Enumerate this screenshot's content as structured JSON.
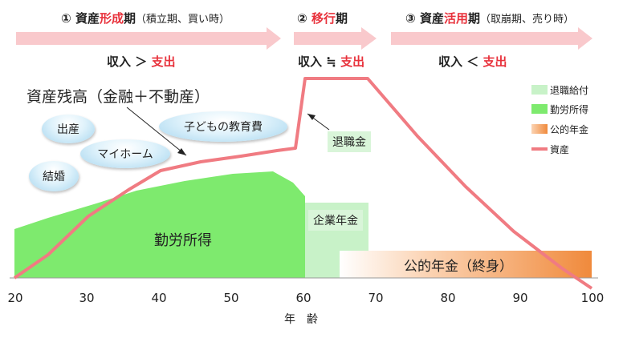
{
  "phases": [
    {
      "number": "①",
      "name_pre": "資産",
      "name_hl": "形成",
      "name_post": "期",
      "subtitle": "（積立期、買い時）",
      "comparison_left": "収入",
      "comparison_sign": "＞",
      "comparison_right": "支出"
    },
    {
      "number": "②",
      "name_pre": "",
      "name_hl": "移行",
      "name_post": "期",
      "subtitle": "",
      "comparison_left": "収入",
      "comparison_sign": "≒",
      "comparison_right": "支出"
    },
    {
      "number": "③",
      "name_pre": "資産",
      "name_hl": "活用",
      "name_post": "期",
      "subtitle": "（取崩期、売り時）",
      "comparison_left": "収入",
      "comparison_sign": "＜",
      "comparison_right": "支出"
    }
  ],
  "legend": [
    {
      "label": "退職給付",
      "color": "#c8f2c8",
      "kind": "box"
    },
    {
      "label": "勤労所得",
      "color": "#7eea6e",
      "kind": "box"
    },
    {
      "label": "公的年金",
      "color": "#f4a46a",
      "kind": "gradient"
    },
    {
      "label": "資産",
      "color": "#f07b82",
      "kind": "line"
    }
  ],
  "labels": {
    "asset_balance": "資産残高（金融＋不動産）",
    "retirement_allowance": "退職金",
    "corporate_pension": "企業年金",
    "earned_income": "勤労所得",
    "public_pension": "公的年金（終身）",
    "x_axis": "年　齢"
  },
  "life_events": [
    "出産",
    "マイホーム",
    "結婚",
    "子どもの教育費"
  ],
  "x_ticks": [
    "20",
    "30",
    "40",
    "50",
    "60",
    "70",
    "80",
    "90",
    "100"
  ],
  "colors": {
    "arrow": "#f9c9cc",
    "highlight": "#e8323c",
    "earned_income": "#7eea6e",
    "retirement": "#c8f2c8",
    "asset_line": "#f07b82"
  }
}
